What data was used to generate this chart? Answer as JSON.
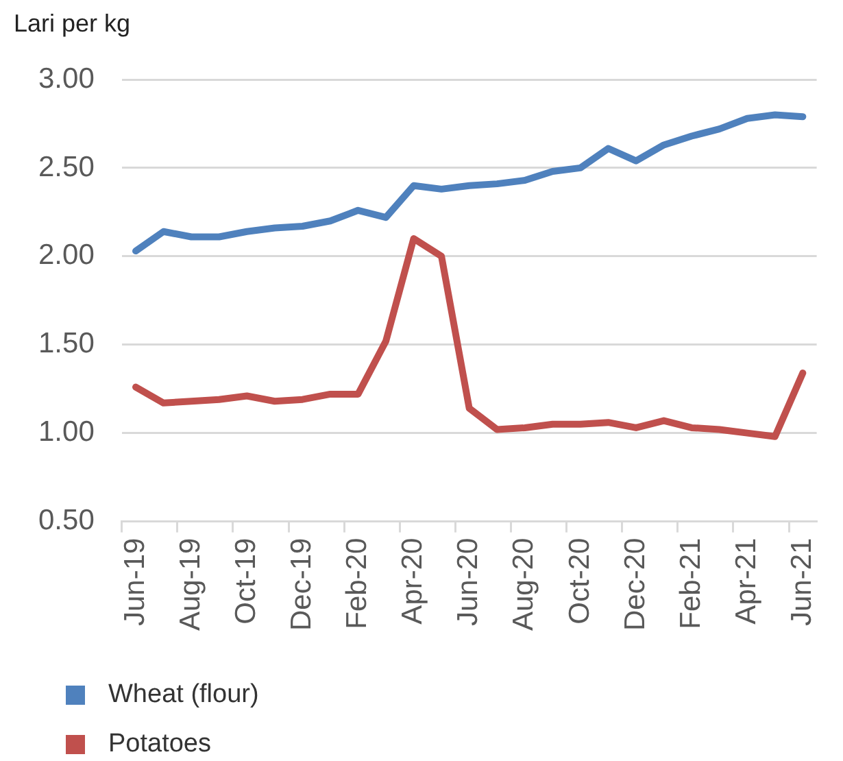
{
  "chart_data": {
    "type": "line",
    "ylabel": "Lari per kg",
    "categories": [
      "Jun-19",
      null,
      "Aug-19",
      null,
      "Oct-19",
      null,
      "Dec-19",
      null,
      "Feb-20",
      null,
      "Apr-20",
      null,
      "Jun-20",
      null,
      "Aug-20",
      null,
      "Oct-20",
      null,
      "Dec-20",
      null,
      "Feb-21",
      null,
      "Apr-21",
      null,
      "Jun-21"
    ],
    "series": [
      {
        "name": "Wheat (flour)",
        "color": "#4f81bd",
        "values": [
          2.03,
          2.14,
          2.11,
          2.11,
          2.14,
          2.16,
          2.17,
          2.2,
          2.26,
          2.22,
          2.4,
          2.38,
          2.4,
          2.41,
          2.43,
          2.48,
          2.5,
          2.61,
          2.54,
          2.63,
          2.68,
          2.72,
          2.78,
          2.8,
          2.79
        ]
      },
      {
        "name": "Potatoes",
        "color": "#c0504d",
        "values": [
          1.26,
          1.17,
          1.18,
          1.19,
          1.21,
          1.18,
          1.19,
          1.22,
          1.22,
          1.52,
          2.1,
          2.0,
          1.14,
          1.02,
          1.03,
          1.05,
          1.05,
          1.06,
          1.03,
          1.07,
          1.03,
          1.02,
          1.0,
          0.98,
          1.34
        ]
      }
    ],
    "ylim": [
      0.5,
      3
    ],
    "yticks": [
      {
        "value": 0.5,
        "label": "0.50"
      },
      {
        "value": 1,
        "label": "1.00"
      },
      {
        "value": 1.5,
        "label": "1.50"
      },
      {
        "value": 2,
        "label": "2.00"
      },
      {
        "value": 2.5,
        "label": "2.50"
      },
      {
        "value": 3,
        "label": "3.00"
      }
    ],
    "grid": "y",
    "legend": "bottom",
    "marker": "none",
    "line_style": "solid"
  }
}
